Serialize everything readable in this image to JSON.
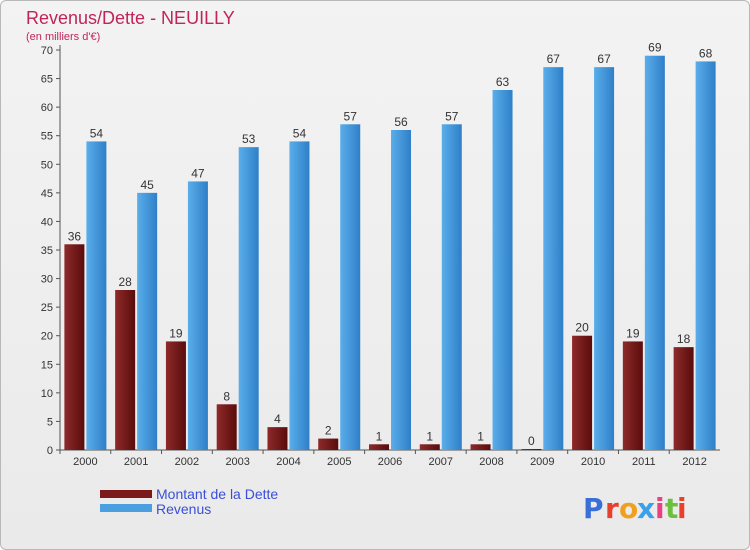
{
  "chart_data": {
    "type": "bar",
    "title": "Revenus/Dette - NEUILLY",
    "subtitle": "(en milliers d'€)",
    "categories": [
      "2000",
      "2001",
      "2002",
      "2003",
      "2004",
      "2005",
      "2006",
      "2007",
      "2008",
      "2009",
      "2010",
      "2011",
      "2012"
    ],
    "series": [
      {
        "name": "Montant de la Dette",
        "color": "#7a1a1a",
        "values": [
          36,
          28,
          19,
          8,
          4,
          2,
          1,
          1,
          1,
          0,
          20,
          19,
          18
        ]
      },
      {
        "name": "Revenus",
        "color": "#4a9fe0",
        "values": [
          54,
          45,
          47,
          53,
          54,
          57,
          56,
          57,
          63,
          67,
          67,
          69,
          68
        ]
      }
    ],
    "ylim": [
      0,
      70
    ],
    "yticks": [
      0,
      5,
      10,
      15,
      20,
      25,
      30,
      35,
      40,
      45,
      50,
      55,
      60,
      65,
      70
    ],
    "grid": false,
    "legend": "bottom-left"
  },
  "brand": {
    "text": "Proxiti",
    "letters": [
      "P",
      "r",
      "o",
      "x",
      "i",
      "t",
      "i"
    ],
    "colors": [
      "#3a6fd8",
      "#e8402a",
      "#f0a020",
      "#3aa0e8",
      "#e84080",
      "#6cc040",
      "#e8402a"
    ]
  }
}
